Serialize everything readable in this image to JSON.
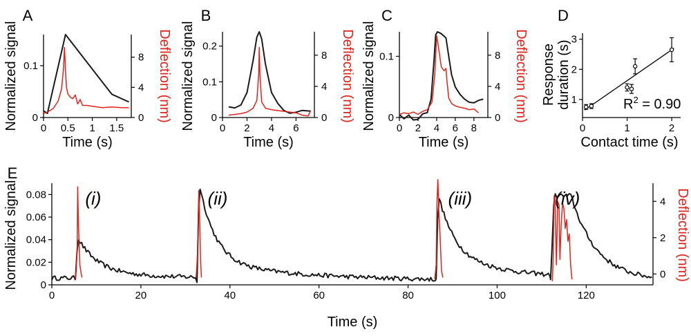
{
  "chart_data": [
    {
      "id": "A",
      "type": "line",
      "letter": "A",
      "xlabel": "Time (s)",
      "ylabel": "Normalized signal",
      "y2label": "Deflection (nm)",
      "xlim": [
        0,
        1.8
      ],
      "ylim": [
        0,
        0.16
      ],
      "y2lim": [
        0,
        11
      ],
      "xticks": [
        0,
        0.5,
        1,
        1.5
      ],
      "xticklabels": [
        "0",
        "0.5",
        "1",
        "1.5"
      ],
      "yticks": [
        0,
        0.1
      ],
      "yticklabels": [
        "0",
        "0.1"
      ],
      "y2ticks": [
        0,
        4,
        8
      ],
      "y2ticklabels": [
        "0",
        "4",
        "8"
      ],
      "series": [
        {
          "name": "Normalized signal",
          "axis": "left",
          "color": "#1a1a1a",
          "x": [
            0,
            0.08,
            0.45,
            1.4,
            1.75
          ],
          "y": [
            0.013,
            0.008,
            0.16,
            0.045,
            0.03
          ]
        },
        {
          "name": "Deflection",
          "axis": "right",
          "color": "#e0231b",
          "x": [
            0,
            0.1,
            0.2,
            0.3,
            0.37,
            0.41,
            0.43,
            0.45,
            0.47,
            0.5,
            0.55,
            0.6,
            0.65,
            0.7,
            0.75,
            0.8,
            0.9,
            1.0,
            1.2,
            1.4,
            1.6,
            1.75
          ],
          "y": [
            0.5,
            0.8,
            1.2,
            2.2,
            3.8,
            6.5,
            9.3,
            6.2,
            4.0,
            3.1,
            2.7,
            2.5,
            3.0,
            1.8,
            2.4,
            1.6,
            1.6,
            1.5,
            1.3,
            1.4,
            1.3,
            1.3
          ]
        }
      ]
    },
    {
      "id": "B",
      "type": "line",
      "letter": "B",
      "xlabel": "Time (s)",
      "ylabel": "Normalized signal",
      "y2label": "Deflection (nm)",
      "xlim": [
        0,
        7.5
      ],
      "ylim": [
        0,
        0.24
      ],
      "y2lim": [
        0,
        11
      ],
      "xticks": [
        0,
        2,
        4,
        6
      ],
      "xticklabels": [
        "0",
        "2",
        "4",
        "6"
      ],
      "yticks": [
        0,
        0.1,
        0.2
      ],
      "yticklabels": [
        "0",
        "0.1",
        "0.2"
      ],
      "y2ticks": [
        0,
        4,
        8
      ],
      "y2ticklabels": [
        "0",
        "4",
        "8"
      ],
      "series": [
        {
          "name": "Normalized signal",
          "axis": "left",
          "color": "#1a1a1a",
          "x": [
            0.5,
            1.0,
            1.5,
            2.0,
            2.5,
            2.8,
            3.0,
            3.2,
            3.5,
            4.0,
            4.5,
            5.0,
            5.5,
            6.0,
            6.5,
            7.2
          ],
          "y": [
            0.03,
            0.027,
            0.035,
            0.07,
            0.16,
            0.225,
            0.24,
            0.22,
            0.15,
            0.07,
            0.04,
            0.02,
            0.012,
            0.015,
            0.02,
            0.018
          ]
        },
        {
          "name": "Deflection",
          "axis": "right",
          "color": "#e0231b",
          "x": [
            0.5,
            1.5,
            2.0,
            2.5,
            2.8,
            2.95,
            3.0,
            3.05,
            3.2,
            3.5,
            4.0,
            5.0,
            6.0,
            6.5,
            7.0,
            7.2
          ],
          "y": [
            0.3,
            0.5,
            0.7,
            1.2,
            2.2,
            5.5,
            9.0,
            5.5,
            2.0,
            1.2,
            1.0,
            0.8,
            0.6,
            0.3,
            0.2,
            0.9
          ]
        }
      ]
    },
    {
      "id": "C",
      "type": "line",
      "letter": "C",
      "xlabel": "Time (s)",
      "ylabel": "Normalized signal",
      "y2label": "Deflection (nm)",
      "xlim": [
        0,
        9.5
      ],
      "ylim": [
        0,
        0.14
      ],
      "y2lim": [
        0,
        11
      ],
      "xticks": [
        0,
        2,
        4,
        6,
        8
      ],
      "xticklabels": [
        "0",
        "2",
        "4",
        "6",
        "8"
      ],
      "yticks": [
        0,
        0.1
      ],
      "yticklabels": [
        "0",
        "0.1"
      ],
      "y2ticks": [
        0,
        4,
        8
      ],
      "y2ticklabels": [
        "0",
        "4",
        "8"
      ],
      "series": [
        {
          "name": "Normalized signal",
          "axis": "left",
          "color": "#1a1a1a",
          "x": [
            0,
            0.5,
            1.0,
            1.5,
            2.0,
            2.5,
            3.0,
            3.4,
            3.7,
            3.9,
            4.1,
            4.5,
            5.0,
            5.3,
            5.6,
            6.0,
            6.5,
            7.0,
            7.5,
            8.0,
            8.5,
            9.0
          ],
          "y": [
            0.005,
            -0.002,
            0.004,
            -0.004,
            -0.003,
            0.006,
            0.008,
            0.03,
            0.09,
            0.135,
            0.14,
            0.137,
            0.13,
            0.1,
            0.07,
            0.05,
            0.038,
            0.03,
            0.025,
            0.024,
            0.028,
            0.03
          ]
        },
        {
          "name": "Deflection",
          "axis": "right",
          "color": "#e0231b",
          "x": [
            0,
            0.5,
            1.0,
            1.5,
            2.0,
            2.5,
            3.0,
            3.5,
            3.8,
            4.0,
            4.2,
            4.5,
            4.8,
            5.0,
            5.1,
            5.3,
            5.6,
            6.0,
            6.5,
            7.0,
            7.5,
            8.0,
            8.5
          ],
          "y": [
            0.4,
            0.6,
            0.5,
            0.7,
            0.4,
            0.8,
            1.0,
            2.0,
            5.5,
            10.5,
            9.0,
            6.5,
            6.0,
            6.3,
            4.8,
            2.5,
            1.8,
            1.5,
            1.3,
            1.2,
            1.0,
            1.1,
            0.6
          ]
        }
      ]
    },
    {
      "id": "D",
      "type": "scatter",
      "letter": "D",
      "xlabel": "Contact time (s)",
      "ylabel_line1": "Response",
      "ylabel_line2": "duration (s)",
      "xlim": [
        0,
        2.2
      ],
      "ylim": [
        0.4,
        3.2
      ],
      "xticks": [
        0,
        1,
        2
      ],
      "xticklabels": [
        "0",
        "1",
        "2"
      ],
      "yticks": [
        1,
        2,
        3
      ],
      "yticklabels": [
        "1",
        "2",
        "3"
      ],
      "annotation_base": "R",
      "annotation_sup": "2",
      "annotation_rest": " = 0.90",
      "points": [
        {
          "x": 0.08,
          "y": 0.75,
          "err": 0.08
        },
        {
          "x": 0.2,
          "y": 0.78,
          "err": 0.08
        },
        {
          "x": 1.0,
          "y": 1.4,
          "err": 0.12
        },
        {
          "x": 1.1,
          "y": 1.35,
          "err": 0.15
        },
        {
          "x": 1.18,
          "y": 2.1,
          "err": 0.25
        },
        {
          "x": 2.0,
          "y": 2.65,
          "err": 0.4
        }
      ],
      "fit": {
        "x": [
          0.05,
          2.05
        ],
        "y": [
          0.65,
          2.7
        ]
      }
    },
    {
      "id": "E",
      "type": "line",
      "letter": "E",
      "xlabel": "Time (s)",
      "ylabel": "Normalized signal",
      "y2label": "Deflection (nm)",
      "xlim": [
        0,
        135
      ],
      "ylim": [
        0,
        0.09
      ],
      "y2lim": [
        -0.6,
        5
      ],
      "xticks": [
        0,
        20,
        40,
        60,
        80,
        100,
        120
      ],
      "xticklabels": [
        "0",
        "20",
        "40",
        "60",
        "80",
        "100",
        "120"
      ],
      "yticks": [
        0,
        0.02,
        0.04,
        0.06,
        0.08
      ],
      "yticklabels": [
        "0",
        "0.02",
        "0.04",
        "0.06",
        "0.08"
      ],
      "y2ticks": [
        0,
        2,
        4
      ],
      "y2ticklabels": [
        "0",
        "2",
        "4"
      ],
      "annotations": [
        {
          "text": "(i)",
          "x": 7.5,
          "y": 0.082
        },
        {
          "text": "(ii)",
          "x": 35,
          "y": 0.082
        },
        {
          "text": "(iii)",
          "x": 89,
          "y": 0.082
        },
        {
          "text": "(iv)",
          "x": 113,
          "y": 0.082
        }
      ],
      "signal_segments": [
        {
          "t0": 0,
          "t1": 5.3,
          "b0": 0.006,
          "b1": 0.006
        },
        {
          "t0": 5.3,
          "t1": 32.6,
          "peak": 0.042,
          "tau": 4,
          "b0": 0.013,
          "b1": 0.006,
          "rise": 0.5
        },
        {
          "t0": 32.6,
          "t1": 86.3,
          "peak": 0.09,
          "tau": 3.5,
          "b0": 0.02,
          "b1": 0.003,
          "rise": 0.5
        },
        {
          "t0": 86.3,
          "t1": 112.0,
          "peak": 0.08,
          "tau": 3.0,
          "b0": 0.033,
          "b1": 0.006,
          "rise": 0.5
        },
        {
          "t0": 112.0,
          "t1": 135.0,
          "peak": 0.079,
          "plateau": 3.8,
          "tau": 5.0,
          "b0": 0.02,
          "b1": 0.003,
          "rise": 0.8
        }
      ],
      "deflection_bursts": [
        {
          "x": [
            5.2,
            5.5,
            5.7,
            5.8,
            6.0,
            6.3,
            6.6,
            6.8
          ],
          "y": [
            -0.3,
            0.2,
            1.5,
            4.8,
            2.5,
            0.5,
            0.0,
            -0.2
          ]
        },
        {
          "x": [
            32.4,
            32.7,
            32.9,
            33.0,
            33.2,
            33.4,
            33.6
          ],
          "y": [
            -0.2,
            1.0,
            3.5,
            4.6,
            3.0,
            0.8,
            -0.2
          ]
        },
        {
          "x": [
            86.0,
            86.3,
            86.5,
            86.7,
            86.9,
            87.2,
            87.5,
            87.8
          ],
          "y": [
            -0.3,
            0.5,
            4.0,
            5.2,
            3.5,
            2.0,
            0.2,
            -0.2
          ]
        },
        {
          "x": [
            112.4,
            112.6,
            112.8,
            113.0,
            113.3,
            113.6,
            113.9,
            114.1,
            114.4,
            114.7,
            115.0,
            115.3,
            115.6,
            115.9,
            116.2,
            116.5,
            116.8
          ],
          "y": [
            -0.4,
            1.0,
            4.3,
            4.2,
            0.5,
            4.0,
            3.8,
            0.8,
            2.8,
            3.9,
            3.6,
            2.5,
            3.0,
            1.8,
            2.2,
            0.5,
            -0.3
          ]
        }
      ]
    }
  ]
}
